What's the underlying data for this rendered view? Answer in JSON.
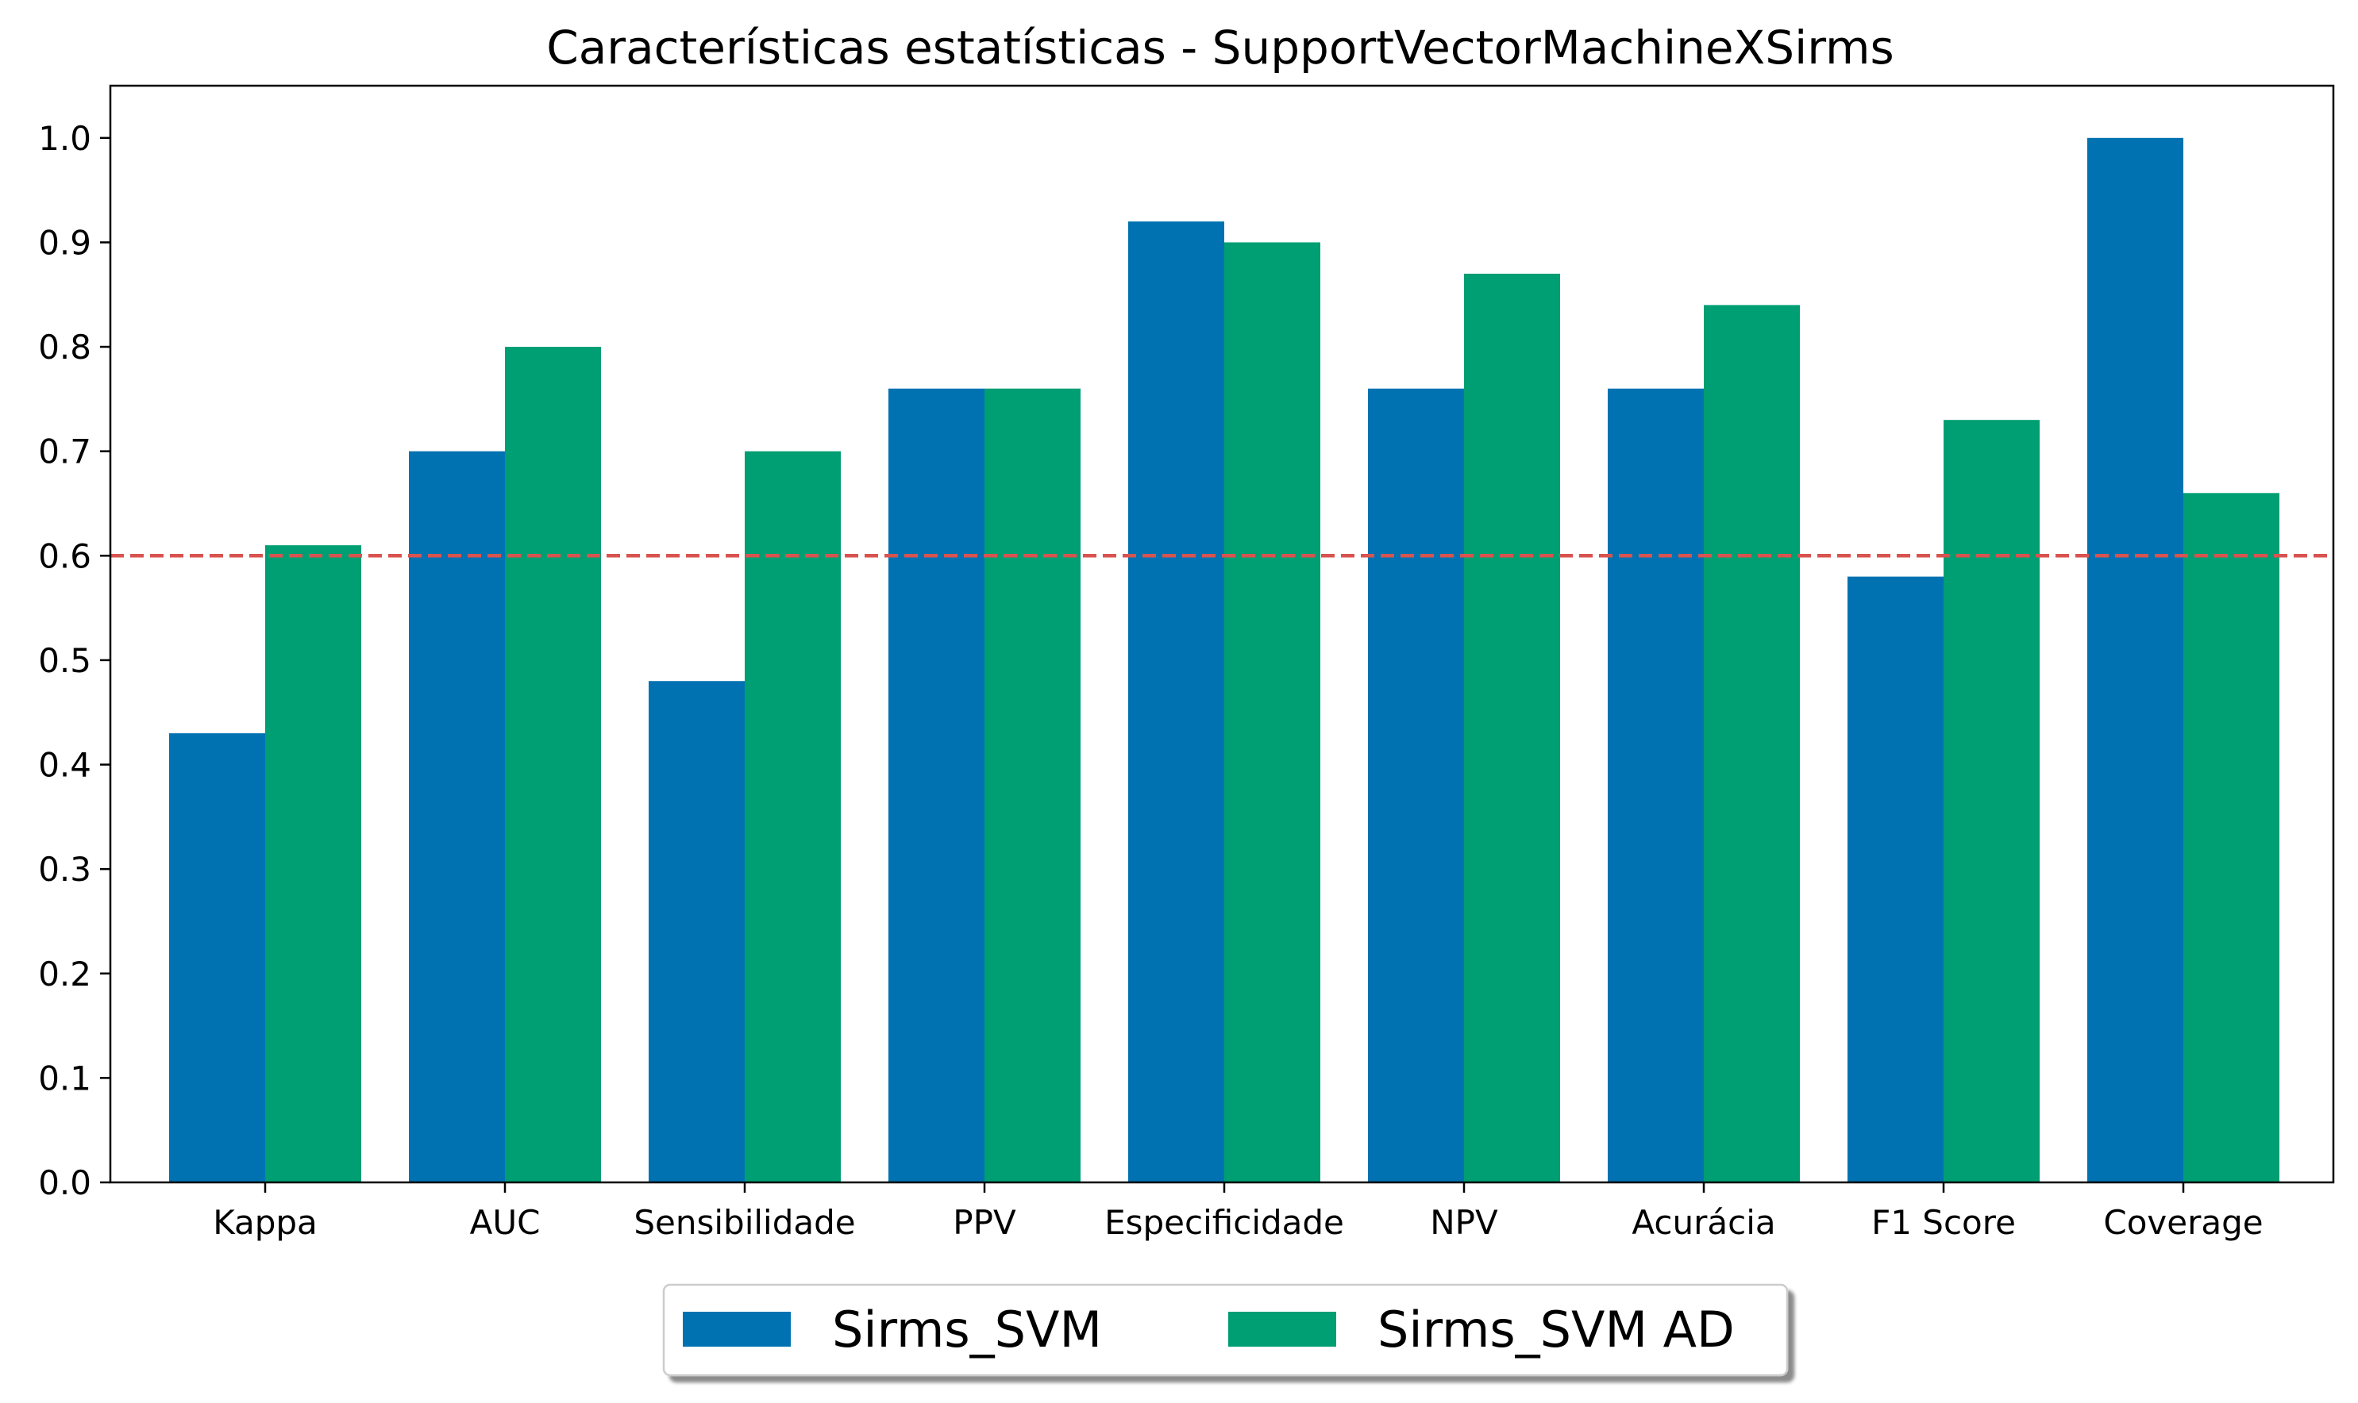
{
  "chart_data": {
    "type": "bar",
    "title": "Características estatísticas - SupportVectorMachineXSirms",
    "xlabel": "",
    "ylabel": "",
    "categories": [
      "Kappa",
      "AUC",
      "Sensibilidade",
      "PPV",
      "Especificidade",
      "NPV",
      "Acurácia",
      "F1 Score",
      "Coverage"
    ],
    "series": [
      {
        "name": "Sirms_SVM",
        "color": "#0072b2",
        "values": [
          0.43,
          0.7,
          0.48,
          0.76,
          0.92,
          0.76,
          0.76,
          0.58,
          1.0
        ]
      },
      {
        "name": "Sirms_SVM AD",
        "color": "#009e73",
        "values": [
          0.61,
          0.8,
          0.7,
          0.76,
          0.9,
          0.87,
          0.84,
          0.73,
          0.66
        ]
      }
    ],
    "ylim": [
      0,
      1.05
    ],
    "yticks": [
      "0.0",
      "0.1",
      "0.2",
      "0.3",
      "0.4",
      "0.5",
      "0.6",
      "0.7",
      "0.8",
      "0.9",
      "1.0"
    ],
    "threshold": {
      "value": 0.6,
      "color": "#d9534f",
      "style": "dashed"
    },
    "grid": false,
    "legend": {
      "placement": "bottom-center",
      "columns": 2
    }
  }
}
